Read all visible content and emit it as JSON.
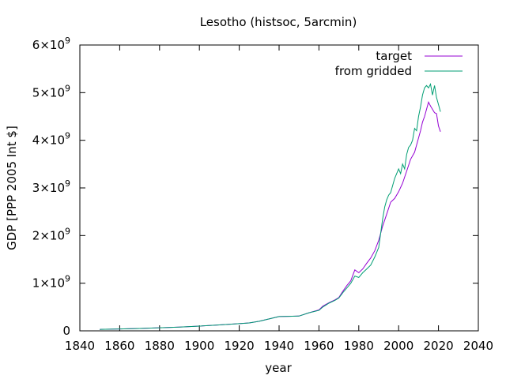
{
  "chart_data": {
    "type": "line",
    "title": "Lesotho (histsoc, 5arcmin)",
    "xlabel": "year",
    "ylabel": "GDP [PPP 2005 Int $]",
    "xlim": [
      1840,
      2040
    ],
    "ylim": [
      0,
      6000000000
    ],
    "x_ticks": [
      1840,
      1860,
      1880,
      1900,
      1920,
      1940,
      1960,
      1980,
      2000,
      2020,
      2040
    ],
    "y_ticks": [
      {
        "value": 0,
        "mantissa": "0",
        "exponent": ""
      },
      {
        "value": 1000000000,
        "mantissa": "1×10",
        "exponent": "9"
      },
      {
        "value": 2000000000,
        "mantissa": "2×10",
        "exponent": "9"
      },
      {
        "value": 3000000000,
        "mantissa": "3×10",
        "exponent": "9"
      },
      {
        "value": 4000000000,
        "mantissa": "4×10",
        "exponent": "9"
      },
      {
        "value": 5000000000,
        "mantissa": "5×10",
        "exponent": "9"
      },
      {
        "value": 6000000000,
        "mantissa": "6×10",
        "exponent": "9"
      }
    ],
    "legend_position": "top-right",
    "grid": false,
    "series": [
      {
        "name": "target",
        "color": "#9400d3",
        "x": [
          1850,
          1860,
          1870,
          1880,
          1890,
          1900,
          1910,
          1920,
          1925,
          1930,
          1935,
          1940,
          1945,
          1950,
          1955,
          1960,
          1962,
          1965,
          1968,
          1970,
          1972,
          1974,
          1976,
          1978,
          1980,
          1982,
          1984,
          1986,
          1988,
          1990,
          1992,
          1994,
          1996,
          1998,
          2000,
          2002,
          2004,
          2006,
          2008,
          2010,
          2011,
          2012,
          2013,
          2014,
          2015,
          2016,
          2017,
          2018,
          2019,
          2020,
          2021
        ],
        "y": [
          30000000,
          40000000,
          50000000,
          65000000,
          80000000,
          100000000,
          125000000,
          150000000,
          165000000,
          200000000,
          250000000,
          300000000,
          305000000,
          310000000,
          380000000,
          440000000,
          520000000,
          590000000,
          650000000,
          700000000,
          830000000,
          950000000,
          1050000000,
          1280000000,
          1220000000,
          1300000000,
          1420000000,
          1530000000,
          1680000000,
          1900000000,
          2200000000,
          2450000000,
          2700000000,
          2780000000,
          2920000000,
          3100000000,
          3350000000,
          3600000000,
          3750000000,
          4050000000,
          4200000000,
          4380000000,
          4500000000,
          4650000000,
          4800000000,
          4720000000,
          4650000000,
          4580000000,
          4560000000,
          4300000000,
          4180000000
        ]
      },
      {
        "name": "from gridded",
        "color": "#009e73",
        "x": [
          1850,
          1860,
          1870,
          1880,
          1890,
          1900,
          1910,
          1920,
          1925,
          1930,
          1935,
          1940,
          1945,
          1950,
          1955,
          1960,
          1962,
          1965,
          1968,
          1970,
          1972,
          1974,
          1976,
          1978,
          1980,
          1982,
          1984,
          1986,
          1988,
          1990,
          1992,
          1993,
          1994,
          1995,
          1996,
          1998,
          2000,
          2001,
          2002,
          2003,
          2004,
          2005,
          2006,
          2007,
          2008,
          2009,
          2010,
          2011,
          2012,
          2013,
          2014,
          2015,
          2016,
          2017,
          2018,
          2019,
          2020,
          2021
        ],
        "y": [
          30000000,
          40000000,
          50000000,
          65000000,
          80000000,
          100000000,
          125000000,
          150000000,
          165000000,
          200000000,
          250000000,
          300000000,
          305000000,
          310000000,
          380000000,
          430000000,
          500000000,
          580000000,
          640000000,
          690000000,
          800000000,
          900000000,
          1000000000,
          1150000000,
          1120000000,
          1220000000,
          1300000000,
          1380000000,
          1550000000,
          1750000000,
          2350000000,
          2600000000,
          2750000000,
          2850000000,
          2900000000,
          3200000000,
          3400000000,
          3300000000,
          3500000000,
          3400000000,
          3700000000,
          3850000000,
          3900000000,
          4000000000,
          4250000000,
          4200000000,
          4500000000,
          4700000000,
          4950000000,
          5100000000,
          5150000000,
          5100000000,
          5180000000,
          4950000000,
          5150000000,
          4900000000,
          4750000000,
          4600000000
        ]
      }
    ]
  }
}
